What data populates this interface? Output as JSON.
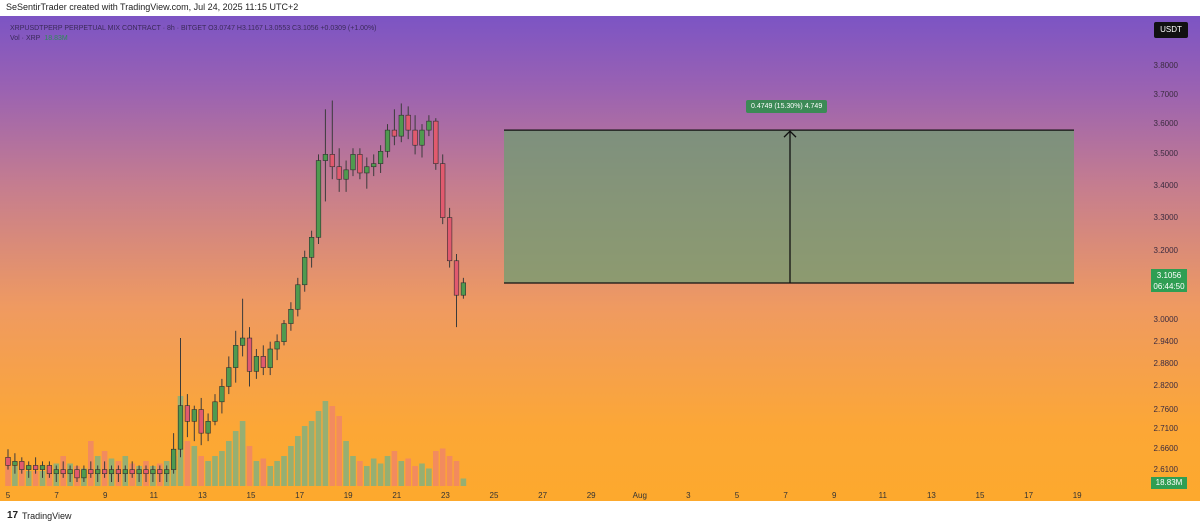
{
  "header": {
    "credit": "SeSentirTrader created with TradingView.com, Jul 24, 2025 11:15 UTC+2"
  },
  "legend": {
    "symbol_line": "XRPUSDTPERP PERPETUAL MIX CONTRACT · 8h · BITGET  O3.0747  H3.1167  L3.0553  C3.1056  +0.0309 (+1.00%)",
    "vol_line": "Vol · XRP",
    "vol_value": "18.83M"
  },
  "quote_currency": "USDT",
  "current_price": {
    "price": "3.1056",
    "countdown": "06:44:50"
  },
  "volume_badge": "18.83M",
  "y_axis_ticks": [
    "3.8000",
    "3.7000",
    "3.6000",
    "3.5000",
    "3.4000",
    "3.3000",
    "3.2000",
    "3.0000",
    "2.9400",
    "2.8800",
    "2.8200",
    "2.7600",
    "2.7100",
    "2.6600",
    "2.6100"
  ],
  "x_axis_ticks": [
    "5",
    "7",
    "9",
    "11",
    "13",
    "15",
    "17",
    "19",
    "21",
    "23",
    "25",
    "27",
    "29",
    "Aug",
    "3",
    "5",
    "7",
    "9",
    "11",
    "13",
    "15",
    "17",
    "19"
  ],
  "range_tool": {
    "label": "0.4749 (15.30%) 4.749",
    "from_price": 3.105,
    "to_price": 3.58
  },
  "footer": {
    "brand": "TradingView",
    "logo_glyph": "17"
  },
  "colors": {
    "bull": "#4f9a4f",
    "bear": "#e15a6e",
    "vol_bull": "#84b07e",
    "vol_bear": "#f08666",
    "range_fill": "#6f9c72",
    "badge": "#2f9e53"
  },
  "chart_data": {
    "type": "candlestick",
    "interval": "8h",
    "y_scale": "log",
    "ylim": [
      2.58,
      3.85
    ],
    "x_start": "Jul 5",
    "candles": [
      {
        "o": 2.64,
        "h": 2.66,
        "l": 2.61,
        "c": 2.62,
        "v": 0.5
      },
      {
        "o": 2.62,
        "h": 2.65,
        "l": 2.6,
        "c": 2.63,
        "v": 0.4
      },
      {
        "o": 2.63,
        "h": 2.64,
        "l": 2.6,
        "c": 2.61,
        "v": 0.35
      },
      {
        "o": 2.61,
        "h": 2.63,
        "l": 2.59,
        "c": 2.62,
        "v": 0.3
      },
      {
        "o": 2.62,
        "h": 2.64,
        "l": 2.6,
        "c": 2.61,
        "v": 0.3
      },
      {
        "o": 2.61,
        "h": 2.63,
        "l": 2.59,
        "c": 2.62,
        "v": 0.3
      },
      {
        "o": 2.62,
        "h": 2.63,
        "l": 2.59,
        "c": 2.6,
        "v": 0.4
      },
      {
        "o": 2.6,
        "h": 2.62,
        "l": 2.58,
        "c": 2.61,
        "v": 0.45
      },
      {
        "o": 2.61,
        "h": 2.63,
        "l": 2.59,
        "c": 2.6,
        "v": 0.6
      },
      {
        "o": 2.6,
        "h": 2.62,
        "l": 2.58,
        "c": 2.61,
        "v": 0.45
      },
      {
        "o": 2.61,
        "h": 2.62,
        "l": 2.58,
        "c": 2.59,
        "v": 0.4
      },
      {
        "o": 2.59,
        "h": 2.62,
        "l": 2.58,
        "c": 2.61,
        "v": 0.35
      },
      {
        "o": 2.61,
        "h": 2.63,
        "l": 2.59,
        "c": 2.6,
        "v": 0.9
      },
      {
        "o": 2.6,
        "h": 2.62,
        "l": 2.58,
        "c": 2.61,
        "v": 0.6
      },
      {
        "o": 2.61,
        "h": 2.63,
        "l": 2.59,
        "c": 2.6,
        "v": 0.7
      },
      {
        "o": 2.6,
        "h": 2.62,
        "l": 2.58,
        "c": 2.61,
        "v": 0.55
      },
      {
        "o": 2.61,
        "h": 2.62,
        "l": 2.58,
        "c": 2.6,
        "v": 0.5
      },
      {
        "o": 2.6,
        "h": 2.62,
        "l": 2.58,
        "c": 2.61,
        "v": 0.6
      },
      {
        "o": 2.61,
        "h": 2.63,
        "l": 2.59,
        "c": 2.6,
        "v": 0.45
      },
      {
        "o": 2.6,
        "h": 2.62,
        "l": 2.58,
        "c": 2.61,
        "v": 0.4
      },
      {
        "o": 2.61,
        "h": 2.62,
        "l": 2.58,
        "c": 2.6,
        "v": 0.5
      },
      {
        "o": 2.6,
        "h": 2.62,
        "l": 2.58,
        "c": 2.61,
        "v": 0.4
      },
      {
        "o": 2.61,
        "h": 2.62,
        "l": 2.58,
        "c": 2.6,
        "v": 0.45
      },
      {
        "o": 2.6,
        "h": 2.62,
        "l": 2.58,
        "c": 2.61,
        "v": 0.5
      },
      {
        "o": 2.61,
        "h": 2.7,
        "l": 2.6,
        "c": 2.66,
        "v": 0.6
      },
      {
        "o": 2.66,
        "h": 2.95,
        "l": 2.64,
        "c": 2.77,
        "v": 1.8
      },
      {
        "o": 2.77,
        "h": 2.8,
        "l": 2.69,
        "c": 2.73,
        "v": 0.9
      },
      {
        "o": 2.73,
        "h": 2.77,
        "l": 2.68,
        "c": 2.76,
        "v": 0.8
      },
      {
        "o": 2.76,
        "h": 2.79,
        "l": 2.67,
        "c": 2.7,
        "v": 0.6
      },
      {
        "o": 2.7,
        "h": 2.75,
        "l": 2.68,
        "c": 2.73,
        "v": 0.5
      },
      {
        "o": 2.73,
        "h": 2.8,
        "l": 2.72,
        "c": 2.78,
        "v": 0.6
      },
      {
        "o": 2.78,
        "h": 2.84,
        "l": 2.75,
        "c": 2.82,
        "v": 0.7
      },
      {
        "o": 2.82,
        "h": 2.9,
        "l": 2.8,
        "c": 2.87,
        "v": 0.9
      },
      {
        "o": 2.87,
        "h": 2.97,
        "l": 2.83,
        "c": 2.93,
        "v": 1.1
      },
      {
        "o": 2.93,
        "h": 3.06,
        "l": 2.9,
        "c": 2.95,
        "v": 1.3
      },
      {
        "o": 2.95,
        "h": 2.98,
        "l": 2.82,
        "c": 2.86,
        "v": 0.8
      },
      {
        "o": 2.86,
        "h": 2.92,
        "l": 2.84,
        "c": 2.9,
        "v": 0.5
      },
      {
        "o": 2.9,
        "h": 2.93,
        "l": 2.85,
        "c": 2.87,
        "v": 0.55
      },
      {
        "o": 2.87,
        "h": 2.94,
        "l": 2.85,
        "c": 2.92,
        "v": 0.4
      },
      {
        "o": 2.92,
        "h": 2.96,
        "l": 2.89,
        "c": 2.94,
        "v": 0.5
      },
      {
        "o": 2.94,
        "h": 3.0,
        "l": 2.93,
        "c": 2.99,
        "v": 0.6
      },
      {
        "o": 2.99,
        "h": 3.05,
        "l": 2.97,
        "c": 3.03,
        "v": 0.8
      },
      {
        "o": 3.03,
        "h": 3.12,
        "l": 3.01,
        "c": 3.1,
        "v": 1.0
      },
      {
        "o": 3.1,
        "h": 3.2,
        "l": 3.08,
        "c": 3.18,
        "v": 1.2
      },
      {
        "o": 3.18,
        "h": 3.26,
        "l": 3.15,
        "c": 3.24,
        "v": 1.3
      },
      {
        "o": 3.24,
        "h": 3.5,
        "l": 3.22,
        "c": 3.48,
        "v": 1.5
      },
      {
        "o": 3.48,
        "h": 3.65,
        "l": 3.35,
        "c": 3.5,
        "v": 1.7
      },
      {
        "o": 3.5,
        "h": 3.68,
        "l": 3.42,
        "c": 3.46,
        "v": 1.6
      },
      {
        "o": 3.46,
        "h": 3.52,
        "l": 3.38,
        "c": 3.42,
        "v": 1.4
      },
      {
        "o": 3.42,
        "h": 3.48,
        "l": 3.38,
        "c": 3.45,
        "v": 0.9
      },
      {
        "o": 3.45,
        "h": 3.52,
        "l": 3.43,
        "c": 3.5,
        "v": 0.6
      },
      {
        "o": 3.5,
        "h": 3.52,
        "l": 3.42,
        "c": 3.44,
        "v": 0.5
      },
      {
        "o": 3.44,
        "h": 3.49,
        "l": 3.39,
        "c": 3.46,
        "v": 0.4
      },
      {
        "o": 3.46,
        "h": 3.5,
        "l": 3.43,
        "c": 3.47,
        "v": 0.55
      },
      {
        "o": 3.47,
        "h": 3.53,
        "l": 3.44,
        "c": 3.51,
        "v": 0.45
      },
      {
        "o": 3.51,
        "h": 3.6,
        "l": 3.49,
        "c": 3.58,
        "v": 0.6
      },
      {
        "o": 3.58,
        "h": 3.65,
        "l": 3.53,
        "c": 3.56,
        "v": 0.7
      },
      {
        "o": 3.56,
        "h": 3.67,
        "l": 3.54,
        "c": 3.63,
        "v": 0.5
      },
      {
        "o": 3.63,
        "h": 3.66,
        "l": 3.55,
        "c": 3.58,
        "v": 0.55
      },
      {
        "o": 3.58,
        "h": 3.63,
        "l": 3.5,
        "c": 3.53,
        "v": 0.4
      },
      {
        "o": 3.53,
        "h": 3.6,
        "l": 3.49,
        "c": 3.58,
        "v": 0.45
      },
      {
        "o": 3.58,
        "h": 3.63,
        "l": 3.56,
        "c": 3.61,
        "v": 0.35
      },
      {
        "o": 3.61,
        "h": 3.62,
        "l": 3.45,
        "c": 3.47,
        "v": 0.7
      },
      {
        "o": 3.47,
        "h": 3.5,
        "l": 3.28,
        "c": 3.3,
        "v": 0.75
      },
      {
        "o": 3.3,
        "h": 3.33,
        "l": 3.15,
        "c": 3.17,
        "v": 0.6
      },
      {
        "o": 3.17,
        "h": 3.19,
        "l": 2.98,
        "c": 3.07,
        "v": 0.5
      },
      {
        "o": 3.07,
        "h": 3.12,
        "l": 3.06,
        "c": 3.1056,
        "v": 0.15
      }
    ]
  }
}
